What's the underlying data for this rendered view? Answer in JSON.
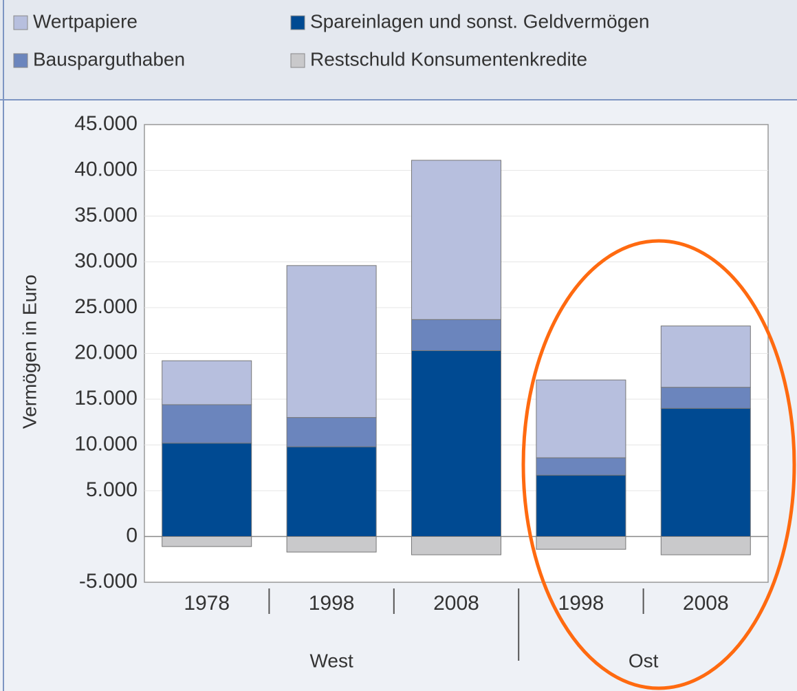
{
  "chart_data": {
    "type": "stacked-bar",
    "y_label": "Vermögen in Euro",
    "categories": [
      "1978",
      "1998",
      "2008",
      "1998",
      "2008"
    ],
    "groups": [
      {
        "label": "West",
        "count": 3
      },
      {
        "label": "Ost",
        "count": 2
      }
    ],
    "series": [
      {
        "name": "Wertpapiere",
        "color": "#b7bfde",
        "values": [
          4800,
          16600,
          17400,
          8500,
          6700
        ]
      },
      {
        "name": "Spareinlagen und sonst. Geldvermögen",
        "color": "#004a92",
        "values": [
          10200,
          9800,
          20300,
          6700,
          14000
        ]
      },
      {
        "name": "Bausparguthaben",
        "color": "#6b85bd",
        "values": [
          4200,
          3200,
          3400,
          1900,
          2300
        ]
      },
      {
        "name": "Restschuld Konsumentenkredite",
        "color": "#c9c9cb",
        "values": [
          -1100,
          -1700,
          -2000,
          -1400,
          -2000
        ]
      }
    ],
    "ylim": [
      -5000,
      45000
    ],
    "yticks": [
      {
        "value": -5000,
        "label": "-5.000"
      },
      0,
      {
        "value": 5000,
        "label": "5.000"
      },
      {
        "value": 10000,
        "label": "10.000"
      },
      {
        "value": 15000,
        "label": "15.000"
      },
      {
        "value": 20000,
        "label": "20.000"
      },
      {
        "value": 25000,
        "label": "25.000"
      },
      {
        "value": 30000,
        "label": "30.000"
      },
      {
        "value": 35000,
        "label": "35.000"
      },
      {
        "value": 40000,
        "label": "40.000"
      },
      {
        "value": 45000,
        "label": "45.000"
      }
    ],
    "grid": true
  }
}
